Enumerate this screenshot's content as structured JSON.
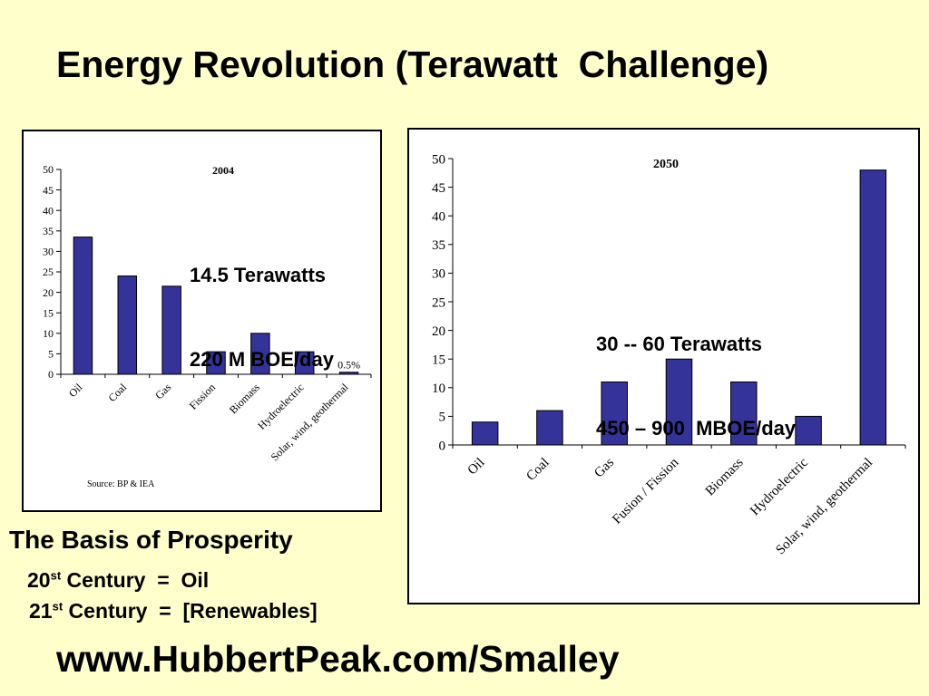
{
  "slide": {
    "title": "Energy Revolution (Terawatt  Challenge)",
    "basis_heading": "The Basis of Prosperity",
    "century20": {
      "num": "20",
      "sup": "st",
      "text": " Century  =  Oil"
    },
    "century21": {
      "num": "21",
      "sup": "st",
      "text": " Century  =  [Renewables]"
    },
    "url": "www.HubbertPeak.com/Smalley"
  },
  "annotations": {
    "chart2004": [
      "14.5 Terawatts",
      "220 M BOE/day"
    ],
    "chart2050": [
      "30 -- 60 Terawatts",
      "450 – 900  MBOE/day"
    ]
  },
  "colors": {
    "background": "#FFFFCC",
    "bar_fill": "#333399",
    "bar_stroke": "#000000"
  },
  "chart_data": [
    {
      "type": "bar",
      "title": "2004",
      "categories": [
        "Oil",
        "Coal",
        "Gas",
        "Fission",
        "Biomass",
        "Hydroelectric",
        "Solar, wind, geothermal"
      ],
      "values": [
        33.5,
        24,
        21.5,
        5.5,
        10,
        5.5,
        0.5
      ],
      "data_labels": [
        "",
        "",
        "",
        "",
        "",
        "",
        "0.5%"
      ],
      "ylim": [
        0,
        50
      ],
      "yticks": [
        0,
        5,
        10,
        15,
        20,
        25,
        30,
        35,
        40,
        45,
        50
      ],
      "source": "Source: BP & IEA",
      "grid": false
    },
    {
      "type": "bar",
      "title": "2050",
      "categories": [
        "Oil",
        "Coal",
        "Gas",
        "Fusion / Fission",
        "Biomass",
        "Hydroelectric",
        "Solar, wind, geothermal"
      ],
      "values": [
        4,
        6,
        11,
        15,
        11,
        5,
        48
      ],
      "ylim": [
        0,
        50
      ],
      "yticks": [
        0,
        5,
        10,
        15,
        20,
        25,
        30,
        35,
        40,
        45,
        50
      ],
      "grid": false
    }
  ]
}
